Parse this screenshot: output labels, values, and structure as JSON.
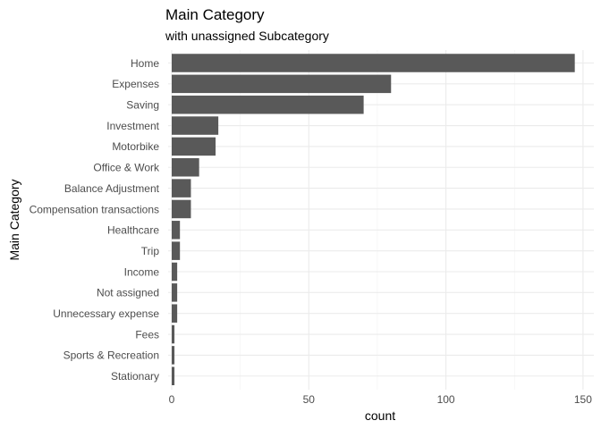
{
  "chart_data": {
    "type": "bar",
    "orientation": "horizontal",
    "title": "Main Category",
    "subtitle": "with unassigned Subcategory",
    "xlabel": "count",
    "ylabel": "Main Category",
    "categories": [
      "Home",
      "Expenses",
      "Saving",
      "Investment",
      "Motorbike",
      "Office & Work",
      "Balance Adjustment",
      "Compensation transactions",
      "Healthcare",
      "Trip",
      "Income",
      "Not assigned",
      "Unnecessary expense",
      "Fees",
      "Sports & Recreation",
      "Stationary"
    ],
    "values": [
      147,
      80,
      70,
      17,
      16,
      10,
      7,
      7,
      3,
      3,
      2,
      2,
      2,
      1,
      1,
      1
    ],
    "xlim": [
      0,
      152
    ],
    "xticks": [
      0,
      50,
      100,
      150
    ],
    "xtick_labels": [
      "0",
      "50",
      "100",
      "150"
    ],
    "grid": true,
    "bar_color": "#595959",
    "grid_color": "#ebebeb",
    "legend": "none"
  }
}
